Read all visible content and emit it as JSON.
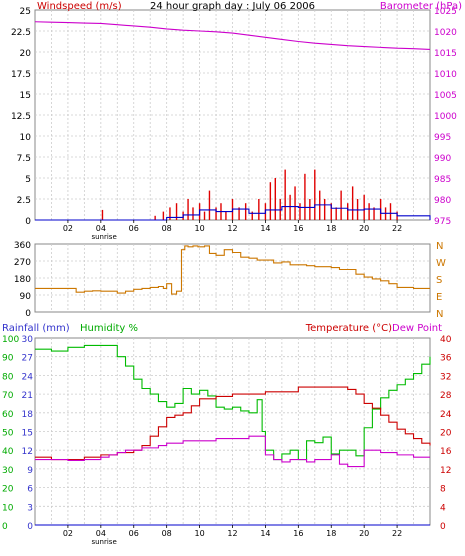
{
  "chart_data": [
    {
      "type": "line",
      "title": "24 hour graph day : July 06 2006",
      "left_axis_label": "Windspeed (m/s)",
      "right_axis_label": "Barometer (hPa)",
      "left_ticks": [
        0,
        2.5,
        5,
        7.5,
        10,
        12.5,
        15,
        17.5,
        20,
        22.5,
        25
      ],
      "left_tick_labels": [
        "0",
        "2.5",
        "5",
        "7.5",
        "10",
        "12.5",
        "15",
        "17.5",
        "20",
        "22.5",
        "25"
      ],
      "right_ticks": [
        975,
        980,
        985,
        990,
        995,
        1000,
        1005,
        1010,
        1015,
        1020,
        1025
      ],
      "x_ticks": [
        "02",
        "04",
        "06",
        "08",
        "10",
        "12",
        "14",
        "16",
        "18",
        "20",
        "22"
      ],
      "x_annotation": "sunrise",
      "x_range_hours": [
        0,
        24
      ],
      "left_ylim": [
        0,
        25
      ],
      "right_ylim": [
        975,
        1025
      ],
      "colors": {
        "wind_gust": "#e00000",
        "wind_avg": "#0000cc",
        "barometer": "#cc00cc",
        "left_label": "#cc0000",
        "right_label": "#cc00cc",
        "grid": "#cccccc"
      },
      "series": [
        {
          "name": "Barometer",
          "axis": "right",
          "x": [
            0,
            1,
            2,
            3,
            4,
            5,
            6,
            7,
            8,
            9,
            10,
            11,
            12,
            13,
            14,
            15,
            16,
            17,
            18,
            19,
            20,
            21,
            22,
            23,
            24
          ],
          "values": [
            1022.2,
            1022.1,
            1022,
            1021.9,
            1021.8,
            1021.5,
            1021.2,
            1020.9,
            1020.5,
            1020.2,
            1020,
            1019.8,
            1019.5,
            1019.0,
            1018.5,
            1018.0,
            1017.5,
            1017.1,
            1016.8,
            1016.5,
            1016.3,
            1016.1,
            1015.9,
            1015.8,
            1015.6
          ]
        },
        {
          "name": "Wind gust",
          "axis": "left",
          "x": [
            4.1,
            7.3,
            7.8,
            8.2,
            8.6,
            9.0,
            9.3,
            9.6,
            10.0,
            10.3,
            10.6,
            11.0,
            11.3,
            11.6,
            12.0,
            12.4,
            12.8,
            13.2,
            13.6,
            14.0,
            14.3,
            14.6,
            14.9,
            15.2,
            15.5,
            15.8,
            16.1,
            16.4,
            16.7,
            17.0,
            17.3,
            17.6,
            18.0,
            18.3,
            18.6,
            19.0,
            19.3,
            19.6,
            20.0,
            20.3,
            20.6,
            21.0,
            21.3,
            21.6,
            22.0
          ],
          "values": [
            1.2,
            0.5,
            1.0,
            1.5,
            2.0,
            1.0,
            2.5,
            1.5,
            2.0,
            1.0,
            3.5,
            1.5,
            2.0,
            1.0,
            2.5,
            1.5,
            2.0,
            1.0,
            2.5,
            2.0,
            4.5,
            5.0,
            2.5,
            6.0,
            3.0,
            4.0,
            2.0,
            5.5,
            2.5,
            6.0,
            3.5,
            2.5,
            2.0,
            1.5,
            3.5,
            2.0,
            4.0,
            2.5,
            3.0,
            2.0,
            1.5,
            2.5,
            1.5,
            2.0,
            1.0
          ]
        },
        {
          "name": "Wind average",
          "axis": "left",
          "x": [
            0,
            7,
            8,
            9,
            10,
            11,
            12,
            13,
            14,
            15,
            16,
            17,
            18,
            19,
            20,
            21,
            22,
            24
          ],
          "values": [
            0,
            0,
            0.3,
            0.6,
            1.2,
            1.0,
            1.3,
            0.8,
            1.2,
            1.6,
            1.5,
            1.8,
            1.4,
            1.2,
            1.3,
            0.8,
            0.5,
            0
          ]
        }
      ]
    },
    {
      "type": "line",
      "right_axis_label_letters": [
        "N",
        "W",
        "S",
        "E",
        "N"
      ],
      "left_ticks": [
        0,
        90,
        180,
        270,
        360
      ],
      "left_tick_labels": [
        "0",
        "90",
        "180",
        "270",
        "360"
      ],
      "ylim": [
        0,
        360
      ],
      "x_range_hours": [
        0,
        24
      ],
      "colors": {
        "direction": "#cc7700"
      },
      "series": [
        {
          "name": "Wind direction",
          "x": [
            0,
            1,
            2,
            2.5,
            3,
            3.5,
            4,
            4.5,
            5,
            5.5,
            6,
            6.5,
            7,
            7.5,
            7.8,
            8.0,
            8.3,
            8.6,
            8.9,
            9.1,
            9.3,
            9.6,
            9.9,
            10.3,
            10.6,
            11,
            11.5,
            12,
            12.5,
            13,
            13.5,
            14,
            14.5,
            15,
            15.5,
            16,
            16.5,
            17,
            17.5,
            18,
            18.5,
            19,
            19.5,
            20,
            20.5,
            21,
            21.5,
            22,
            23,
            24
          ],
          "values": [
            125,
            125,
            125,
            105,
            110,
            112,
            110,
            110,
            100,
            110,
            120,
            125,
            130,
            135,
            125,
            150,
            95,
            110,
            330,
            350,
            345,
            350,
            345,
            350,
            310,
            300,
            330,
            315,
            290,
            285,
            275,
            275,
            260,
            265,
            250,
            250,
            245,
            240,
            240,
            235,
            225,
            225,
            200,
            185,
            175,
            165,
            150,
            130,
            125,
            125
          ]
        }
      ]
    },
    {
      "type": "line",
      "left_axis_label_1": "Rainfall (mm)",
      "left_axis_label_2": "Humidity %",
      "right_axis_label_1": "Temperature (°C)",
      "right_axis_label_2": "Dew Point",
      "rain_ticks": [
        0,
        3,
        6,
        9,
        12,
        15,
        18,
        21,
        24,
        27,
        30
      ],
      "humidity_ticks": [
        0,
        10,
        20,
        30,
        40,
        50,
        60,
        70,
        80,
        90,
        100
      ],
      "temp_ticks": [
        0,
        4,
        8,
        12,
        16,
        20,
        24,
        28,
        32,
        36,
        40
      ],
      "x_ticks": [
        "02",
        "04",
        "06",
        "08",
        "10",
        "12",
        "14",
        "16",
        "18",
        "20",
        "22"
      ],
      "x_annotation": "sunrise",
      "x_range_hours": [
        0,
        24
      ],
      "colors": {
        "rain": "#0000cc",
        "humidity": "#00bb00",
        "temperature": "#cc0000",
        "dewpoint": "#cc00cc",
        "rain_label": "#3333cc",
        "humidity_label": "#00aa00",
        "temp_label": "#cc0000",
        "dew_label": "#cc00cc"
      },
      "series": [
        {
          "name": "Humidity",
          "axis": "humidity",
          "x": [
            0,
            1,
            2,
            3,
            4,
            4.5,
            5,
            5.5,
            6,
            6.5,
            7,
            7.5,
            8,
            8.5,
            9,
            9.5,
            10,
            10.5,
            11,
            11.5,
            12,
            12.5,
            13,
            13.5,
            13.8,
            14,
            14.5,
            15,
            15.5,
            16,
            16.5,
            17,
            17.5,
            18,
            18.5,
            19,
            19.5,
            20,
            20.5,
            21,
            21.5,
            22,
            22.5,
            23,
            23.5,
            24
          ],
          "values": [
            94,
            93,
            95,
            96,
            96,
            96,
            90,
            85,
            78,
            73,
            70,
            66,
            63,
            65,
            73,
            70,
            72,
            69,
            63,
            62,
            63,
            61,
            60,
            67,
            50,
            40,
            35,
            38,
            40,
            35,
            45,
            44,
            47,
            38,
            40,
            40,
            37,
            52,
            62,
            68,
            72,
            75,
            78,
            81,
            86,
            90
          ]
        },
        {
          "name": "Temperature",
          "axis": "temperature",
          "x": [
            0,
            1,
            2,
            3,
            4,
            4.5,
            5,
            5.5,
            6,
            6.5,
            7,
            7.5,
            8,
            8.5,
            9,
            9.5,
            10,
            11,
            12,
            13,
            14,
            15,
            16,
            17,
            18,
            19,
            19.5,
            20,
            20.5,
            21,
            21.5,
            22,
            22.5,
            23,
            23.5,
            24
          ],
          "values": [
            14.5,
            14,
            14,
            14.5,
            15,
            15,
            15.5,
            15.5,
            16,
            17,
            19,
            21,
            23,
            23.5,
            24,
            25.5,
            27,
            27.5,
            28,
            28,
            28.5,
            28.5,
            29.5,
            29.5,
            29.5,
            29,
            28,
            26,
            25,
            23.5,
            22,
            20.5,
            19.5,
            18.5,
            17.5,
            17
          ]
        },
        {
          "name": "Dew Point",
          "axis": "temperature",
          "x": [
            0,
            1,
            2,
            3,
            4,
            4.5,
            5,
            5.5,
            6,
            6.5,
            7,
            7.5,
            8,
            8.5,
            9,
            10,
            11,
            12,
            13,
            13.8,
            14,
            14.5,
            15,
            15.5,
            16,
            16.5,
            17,
            17.5,
            18,
            18.5,
            19,
            19.5,
            20,
            20.5,
            21,
            22,
            23,
            24
          ],
          "values": [
            14,
            14,
            13.8,
            14,
            14.5,
            15,
            15.5,
            16,
            16,
            16.5,
            16.5,
            17,
            17.5,
            17.5,
            18,
            18,
            18.5,
            18.5,
            19,
            19,
            15,
            14,
            13.5,
            14,
            14,
            13.5,
            14,
            14,
            15,
            13,
            12.5,
            12.5,
            16,
            16,
            15.5,
            15,
            14.5,
            14.5
          ]
        },
        {
          "name": "Rainfall",
          "axis": "rain",
          "x": [
            0,
            24
          ],
          "values": [
            0,
            0
          ]
        }
      ]
    }
  ]
}
